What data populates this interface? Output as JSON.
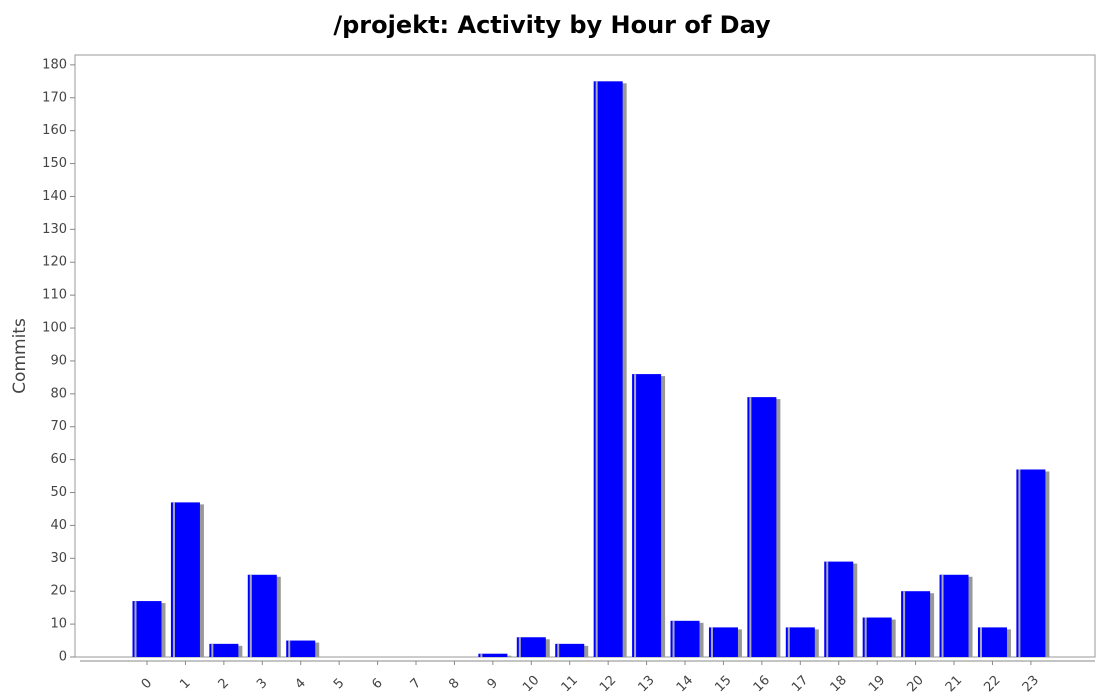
{
  "chart_data": {
    "type": "bar",
    "title": "/projekt: Activity by Hour of Day",
    "y_label": "Commits",
    "categories": [
      "0",
      "1",
      "2",
      "3",
      "4",
      "5",
      "6",
      "7",
      "8",
      "9",
      "10",
      "11",
      "12",
      "13",
      "14",
      "15",
      "16",
      "17",
      "18",
      "19",
      "20",
      "21",
      "22",
      "23"
    ],
    "values": [
      17,
      47,
      4,
      25,
      5,
      0,
      0,
      0,
      0,
      1,
      6,
      4,
      175,
      86,
      11,
      9,
      79,
      9,
      29,
      12,
      20,
      25,
      9,
      57
    ],
    "color": "#0000ff",
    "ylim": [
      0,
      183
    ],
    "yticks": [
      0,
      10,
      20,
      30,
      40,
      50,
      60,
      70,
      80,
      90,
      100,
      110,
      120,
      130,
      140,
      150,
      160,
      170,
      180
    ]
  }
}
